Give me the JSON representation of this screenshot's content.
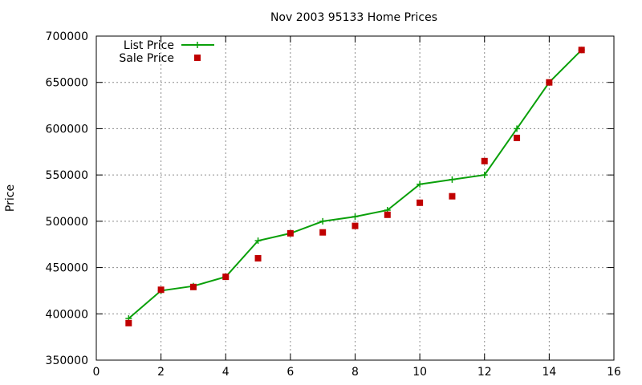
{
  "chart_data": {
    "type": "line",
    "title": "Nov 2003 95133 Home Prices",
    "xlabel": "",
    "ylabel": "Price",
    "xlim": [
      0,
      16
    ],
    "ylim": [
      350000,
      700000
    ],
    "x_ticks": [
      0,
      2,
      4,
      6,
      8,
      10,
      12,
      14,
      16
    ],
    "y_ticks": [
      350000,
      400000,
      450000,
      500000,
      550000,
      600000,
      650000,
      700000
    ],
    "grid": true,
    "legend_position": "top-left",
    "series": [
      {
        "name": "List Price",
        "style": "line-with-plus-markers",
        "color": "#0aa00a",
        "x": [
          1,
          2,
          3,
          4,
          5,
          6,
          7,
          8,
          9,
          10,
          11,
          12,
          13,
          14,
          15
        ],
        "values": [
          395000,
          425000,
          430000,
          440000,
          479000,
          487000,
          500000,
          505000,
          512000,
          540000,
          545000,
          550000,
          600000,
          650000,
          685000
        ]
      },
      {
        "name": "Sale Price",
        "style": "square-markers",
        "color": "#c00000",
        "x": [
          1,
          2,
          3,
          4,
          5,
          6,
          7,
          8,
          9,
          10,
          11,
          12,
          13,
          14,
          15
        ],
        "values": [
          390000,
          426000,
          429000,
          440000,
          460000,
          487000,
          488000,
          495000,
          507000,
          520000,
          527000,
          565000,
          590000,
          650000,
          685000
        ]
      }
    ]
  }
}
